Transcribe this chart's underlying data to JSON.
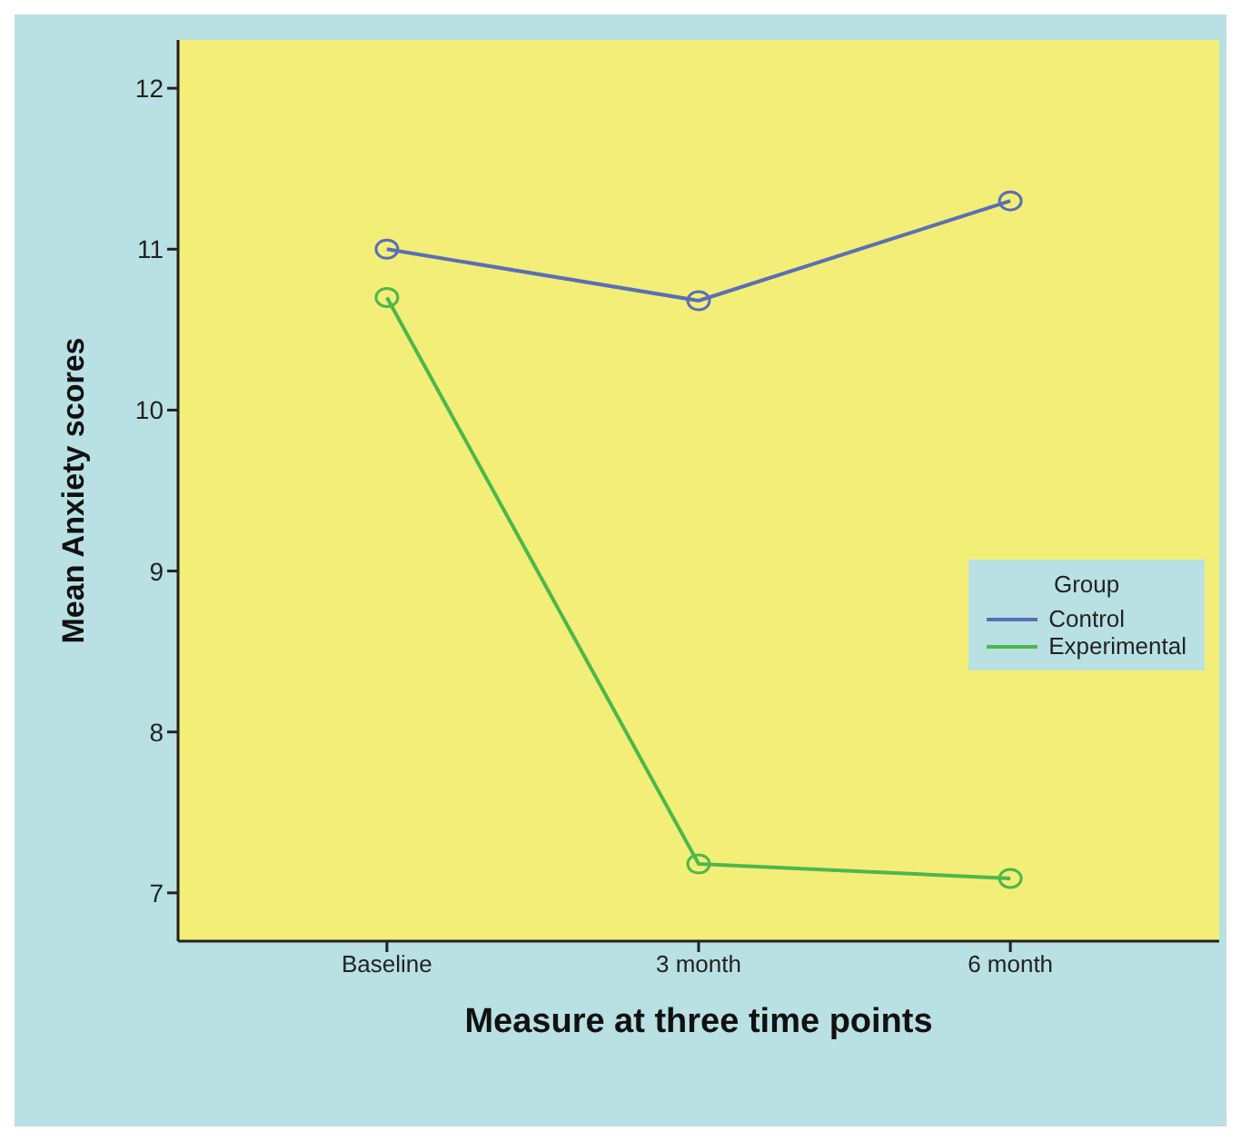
{
  "chart_data": {
    "type": "line",
    "xlabel": "Measure at three time points",
    "ylabel": "Mean Anxiety scores",
    "legend_title": "Group",
    "categories": [
      "Baseline",
      "3 month",
      "6 month"
    ],
    "series": [
      {
        "name": "Control",
        "color": "#5a6fb5",
        "values": [
          11.0,
          10.68,
          11.3
        ]
      },
      {
        "name": "Experimental",
        "color": "#4cb84c",
        "values": [
          10.7,
          7.18,
          7.09
        ]
      }
    ],
    "ylim": [
      6.7,
      12.3
    ],
    "yticks": [
      7,
      8,
      9,
      10,
      11,
      12
    ],
    "grid": false,
    "legend": "right",
    "marker": "circle",
    "line_style": "solid"
  }
}
